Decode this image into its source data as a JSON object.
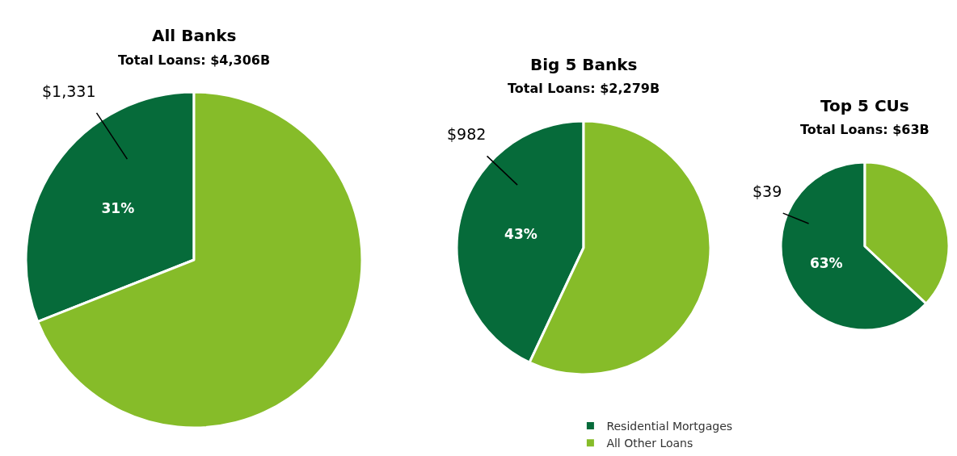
{
  "chart_data": [
    {
      "type": "pie",
      "title": "All Banks",
      "subtitle": "Total Loans: $4,306B",
      "categories": [
        "Residential Mortgages",
        "All Other Loans"
      ],
      "values": [
        31,
        69
      ],
      "colors": [
        "#066b3a",
        "#86bc29"
      ],
      "value_labels": [
        "31%",
        null
      ],
      "annotations": [
        "$1,331"
      ],
      "legend": "bottom right"
    },
    {
      "type": "pie",
      "title": "Big 5 Banks",
      "subtitle": "Total Loans: $2,279B",
      "categories": [
        null,
        null
      ],
      "values": [
        43,
        57
      ],
      "colors": [
        "#066b3a",
        "#86bc29"
      ],
      "value_labels": [
        "43%",
        null
      ],
      "annotations": [
        "$982"
      ]
    },
    {
      "type": "pie",
      "title": "Top 5 CUs",
      "subtitle": "Total Loans: $63B",
      "categories": [
        null,
        null
      ],
      "values": [
        63,
        37
      ],
      "colors": [
        "#066b3a",
        "#86bc29"
      ],
      "value_labels": [
        "63%",
        null
      ],
      "annotations": [
        "$39"
      ]
    }
  ]
}
